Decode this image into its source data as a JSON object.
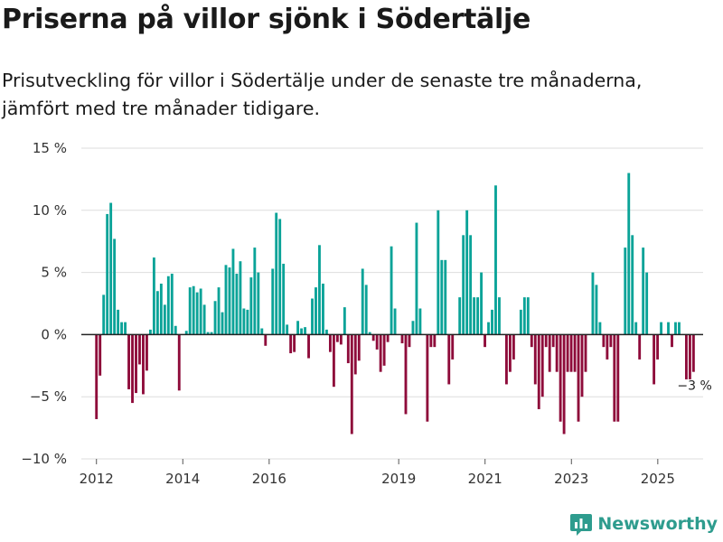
{
  "title": "Priserna på villor sjönk i Södertälje",
  "subtitle": "Prisutveckling för villor i Södertälje under de senaste tre månaderna, jämfört med tre månader tidigare.",
  "brand": {
    "name": "Newsworthy",
    "icon": "bar-chart-icon"
  },
  "colors": {
    "positive": "#0aa398",
    "negative": "#8e0b3a",
    "grid": "#dedede",
    "zero": "#222222",
    "brand": "#2e9c8e"
  },
  "chart_data": {
    "type": "bar",
    "title": "Priserna på villor sjönk i Södertälje",
    "ylabel": "",
    "xlabel": "",
    "ylim": [
      -10,
      15
    ],
    "yticks": [
      15,
      10,
      5,
      0,
      -5,
      -10
    ],
    "ytick_labels": [
      "15 %",
      "10 %",
      "5 %",
      "0 %",
      "−5 %",
      "−10 %"
    ],
    "x_range": [
      2012.0,
      2025.6
    ],
    "xticks": [
      2012,
      2014,
      2016,
      2019,
      2021,
      2023,
      2025
    ],
    "xtick_labels": [
      "2012",
      "2014",
      "2016",
      "2019",
      "2021",
      "2023",
      "2025"
    ],
    "start": 2012.0,
    "step_years": 0.0833,
    "values": [
      -6.8,
      -3.3,
      3.2,
      9.7,
      10.6,
      7.7,
      2.0,
      1.0,
      1.0,
      -4.4,
      -5.5,
      -4.7,
      -2.4,
      -4.8,
      -2.9,
      0.4,
      6.2,
      3.5,
      4.1,
      2.4,
      4.7,
      4.9,
      0.7,
      -4.5,
      0.0,
      0.3,
      3.8,
      3.9,
      3.4,
      3.7,
      2.4,
      0.2,
      0.2,
      2.7,
      3.8,
      1.8,
      5.6,
      5.4,
      6.9,
      4.9,
      5.9,
      2.1,
      2.0,
      4.6,
      7.0,
      5.0,
      0.5,
      -0.9,
      0.0,
      5.3,
      9.8,
      9.3,
      5.7,
      0.8,
      -1.5,
      -1.4,
      1.1,
      0.5,
      0.6,
      -1.9,
      2.9,
      3.8,
      7.2,
      4.1,
      0.4,
      -1.4,
      -4.2,
      -0.6,
      -0.8,
      2.2,
      -2.3,
      -8.0,
      -3.2,
      -2.1,
      5.3,
      4.0,
      0.2,
      -0.5,
      -1.2,
      -3.0,
      -2.5,
      -0.6,
      7.1,
      2.1,
      0.0,
      -0.7,
      -6.4,
      -1.0,
      1.1,
      9.0,
      2.1,
      0.0,
      -7.0,
      -1.0,
      -1.0,
      10.0,
      6.0,
      6.0,
      -4.0,
      -2.0,
      0.0,
      3.0,
      8.0,
      10.0,
      8.0,
      3.0,
      3.0,
      5.0,
      -1.0,
      1.0,
      2.0,
      12.0,
      3.0,
      0.0,
      -4.0,
      -3.0,
      -2.0,
      0.0,
      2.0,
      3.0,
      3.0,
      -1.0,
      -4.0,
      -6.0,
      -5.0,
      -1.0,
      -3.0,
      -1.0,
      -3.0,
      -7.0,
      -8.0,
      -3.0,
      -3.0,
      -3.0,
      -7.0,
      -5.0,
      -3.0,
      0.0,
      5.0,
      4.0,
      1.0,
      -1.0,
      -2.0,
      -1.0,
      -7.0,
      -7.0,
      0.0,
      7.0,
      13.0,
      8.0,
      1.0,
      -2.0,
      7.0,
      5.0,
      0.0,
      -4.0,
      -2.0,
      1.0,
      0.0,
      1.0,
      -1.0,
      1.0,
      1.0,
      0.0,
      -3.6,
      -3.6,
      -3.0
    ],
    "end_label": "−3 %"
  }
}
